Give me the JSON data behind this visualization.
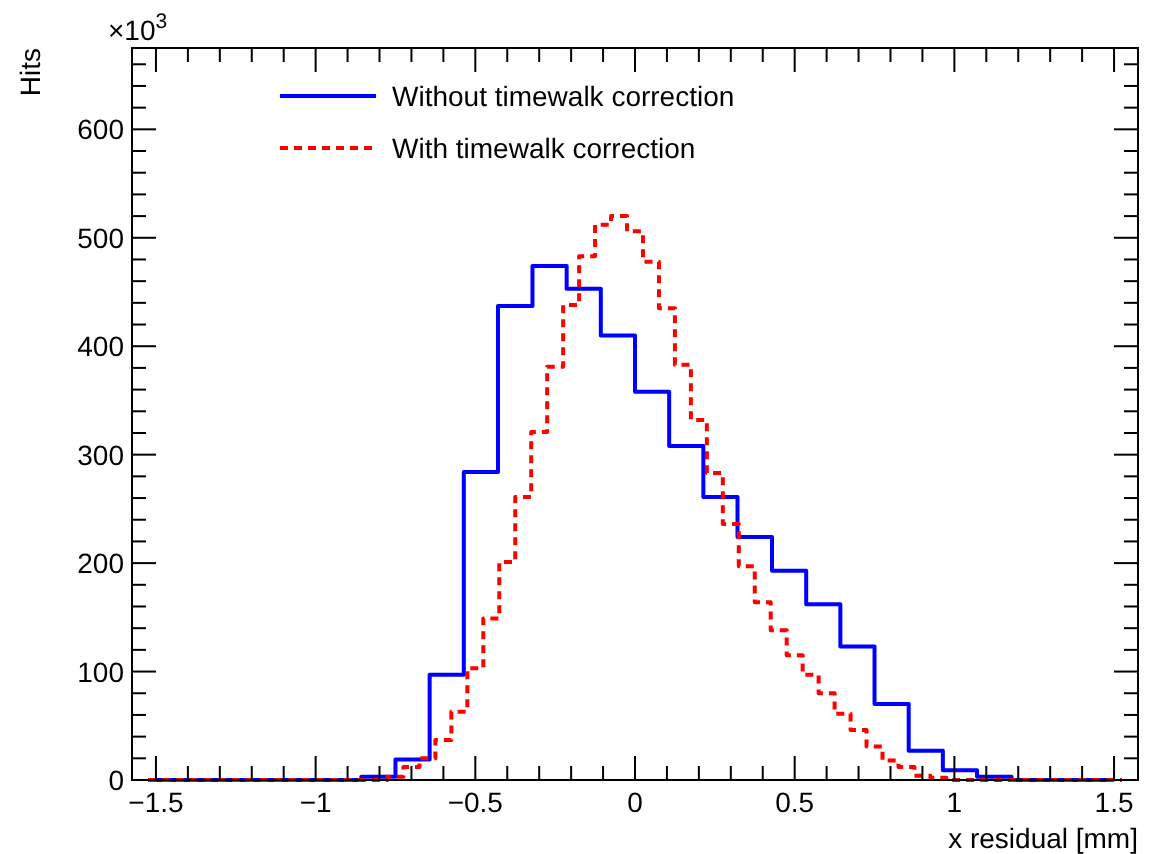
{
  "chart_data": {
    "type": "step",
    "xlabel": "x residual [mm]",
    "ylabel": "Hits",
    "annotations": [
      "×10$^{3}$"
    ],
    "xlim": [
      -1.575,
      1.575
    ],
    "ylim": [
      0,
      675
    ],
    "xticks": [
      {
        "value": -1.5,
        "label": "−1.5"
      },
      {
        "value": -1.4,
        "label": null
      },
      {
        "value": -1.3,
        "label": null
      },
      {
        "value": -1.2,
        "label": null
      },
      {
        "value": -1.1,
        "label": null
      },
      {
        "value": -1,
        "label": "−1"
      },
      {
        "value": -0.9,
        "label": null
      },
      {
        "value": -0.8,
        "label": null
      },
      {
        "value": -0.7,
        "label": null
      },
      {
        "value": -0.6,
        "label": null
      },
      {
        "value": -0.5,
        "label": "−0.5"
      },
      {
        "value": -0.4,
        "label": null
      },
      {
        "value": -0.3,
        "label": null
      },
      {
        "value": -0.2,
        "label": null
      },
      {
        "value": -0.1,
        "label": null
      },
      0,
      {
        "value": 0.1,
        "label": null
      },
      {
        "value": 0.2,
        "label": null
      },
      {
        "value": 0.3,
        "label": null
      },
      {
        "value": 0.4,
        "label": null
      },
      0.5,
      {
        "value": 0.6,
        "label": null
      },
      {
        "value": 0.7,
        "label": null
      },
      {
        "value": 0.8,
        "label": null
      },
      {
        "value": 0.9,
        "label": null
      },
      1,
      {
        "value": 1.1,
        "label": null
      },
      {
        "value": 1.2,
        "label": null
      },
      {
        "value": 1.3,
        "label": null
      },
      {
        "value": 1.4,
        "label": null
      },
      1.5
    ],
    "yticks": [
      0,
      {
        "value": 20,
        "label": null
      },
      {
        "value": 40,
        "label": null
      },
      {
        "value": 60,
        "label": null
      },
      {
        "value": 80,
        "label": null
      },
      100,
      {
        "value": 120,
        "label": null
      },
      {
        "value": 140,
        "label": null
      },
      {
        "value": 160,
        "label": null
      },
      {
        "value": 180,
        "label": null
      },
      200,
      {
        "value": 220,
        "label": null
      },
      {
        "value": 240,
        "label": null
      },
      {
        "value": 260,
        "label": null
      },
      {
        "value": 280,
        "label": null
      },
      300,
      {
        "value": 320,
        "label": null
      },
      {
        "value": 340,
        "label": null
      },
      {
        "value": 360,
        "label": null
      },
      {
        "value": 380,
        "label": null
      },
      400,
      {
        "value": 420,
        "label": null
      },
      {
        "value": 440,
        "label": null
      },
      {
        "value": 460,
        "label": null
      },
      {
        "value": 480,
        "label": null
      },
      500,
      {
        "value": 520,
        "label": null
      },
      {
        "value": 540,
        "label": null
      },
      {
        "value": 560,
        "label": null
      },
      {
        "value": 580,
        "label": null
      },
      600,
      {
        "value": 620,
        "label": null
      },
      {
        "value": 640,
        "label": null
      },
      {
        "value": 660,
        "label": null
      }
    ],
    "legend": "top left",
    "series": [
      {
        "name": "Without timewalk correction",
        "color": "#0000ff",
        "line_style": "solid",
        "x": [
          -1.5,
          -1.393,
          -1.286,
          -1.179,
          -1.071,
          -0.964,
          -0.857,
          -0.75,
          -0.643,
          -0.536,
          -0.429,
          -0.321,
          -0.214,
          -0.107,
          0,
          0.107,
          0.214,
          0.321,
          0.429,
          0.536,
          0.643,
          0.75,
          0.857,
          0.964,
          1.071,
          1.179,
          1.286,
          1.393,
          1.5
        ],
        "values": [
          0,
          0,
          0,
          0,
          0,
          0,
          3,
          19,
          97,
          284,
          437,
          474,
          453,
          410,
          358,
          308,
          261,
          224,
          193,
          162,
          123,
          70,
          27,
          9,
          3,
          0,
          0,
          0,
          0
        ]
      },
      {
        "name": "With timewalk correction",
        "color": "#ff0000",
        "line_style": "dashed",
        "x": [
          -1.525,
          -1.475,
          -1.425,
          -1.375,
          -1.325,
          -1.275,
          -1.225,
          -1.175,
          -1.125,
          -1.075,
          -1.025,
          -0.975,
          -0.925,
          -0.875,
          -0.825,
          -0.775,
          -0.725,
          -0.675,
          -0.625,
          -0.575,
          -0.525,
          -0.475,
          -0.425,
          -0.375,
          -0.325,
          -0.275,
          -0.225,
          -0.175,
          -0.125,
          -0.075,
          -0.025,
          0.025,
          0.075,
          0.125,
          0.175,
          0.225,
          0.275,
          0.325,
          0.375,
          0.425,
          0.475,
          0.525,
          0.575,
          0.625,
          0.675,
          0.725,
          0.775,
          0.825,
          0.875,
          0.925,
          0.975,
          1.025,
          1.075,
          1.125,
          1.175,
          1.225,
          1.275,
          1.325,
          1.375,
          1.425,
          1.475,
          1.525
        ],
        "values": [
          0,
          0,
          0,
          0,
          0,
          0,
          0,
          0,
          0,
          0,
          0,
          0,
          0,
          0,
          0,
          3,
          12,
          20,
          37,
          63,
          103,
          149,
          201,
          261,
          321,
          381,
          438,
          483,
          512,
          520,
          506,
          478,
          435,
          383,
          332,
          283,
          236,
          197,
          164,
          138,
          115,
          97,
          80,
          61,
          46,
          31,
          18,
          12,
          4,
          2,
          0,
          0,
          0,
          0,
          0,
          0,
          0,
          0,
          0,
          0,
          0,
          0
        ]
      }
    ]
  }
}
